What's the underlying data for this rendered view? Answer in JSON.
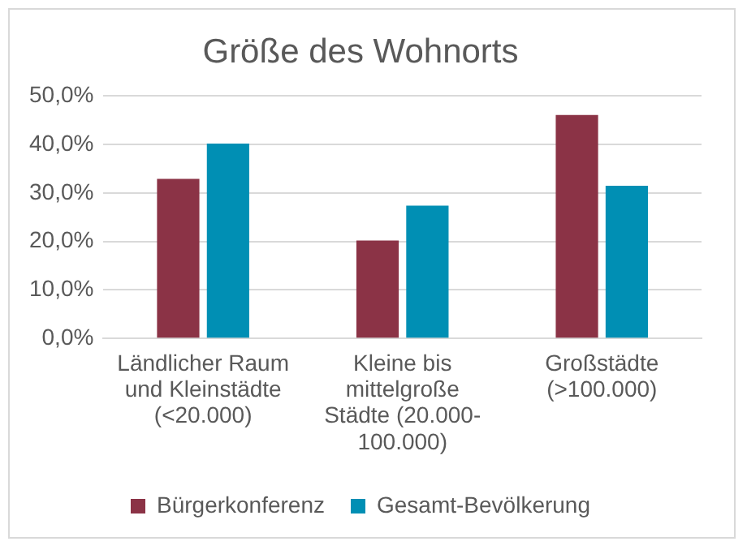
{
  "chart_data": {
    "type": "bar",
    "title": "Größe des Wohnorts",
    "categories": [
      "Ländlicher Raum und Kleinstädte (<20.000)",
      "Kleine bis mittelgroße Städte (20.000-100.000)",
      "Großstädte (>100.000)"
    ],
    "series": [
      {
        "name": "Bürgerkonferenz",
        "color": "#8b3346",
        "values": [
          32.9,
          20.2,
          46.1
        ]
      },
      {
        "name": "Gesamt-Bevölkerung",
        "color": "#008fb4",
        "values": [
          40.2,
          27.4,
          31.5
        ]
      }
    ],
    "ylim": [
      0,
      50
    ],
    "yticks": [
      {
        "value": 0,
        "label": "0,0%"
      },
      {
        "value": 10,
        "label": "10,0%"
      },
      {
        "value": 20,
        "label": "20,0%"
      },
      {
        "value": 30,
        "label": "30,0%"
      },
      {
        "value": 40,
        "label": "40,0%"
      },
      {
        "value": 50,
        "label": "50,0%"
      }
    ],
    "grid": "y",
    "legend": "bottom"
  }
}
